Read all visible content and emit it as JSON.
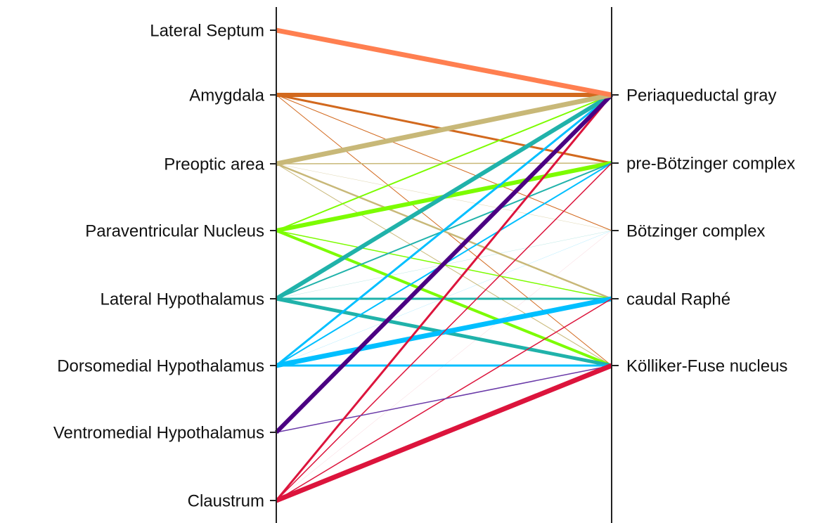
{
  "left_nodes": [
    "Lateral Septum",
    "Amygdala",
    "Preoptic area",
    "Paraventricular Nucleus",
    "Lateral Hypothalamus",
    "Dorsomedial Hypothalamus",
    "Ventromedial Hypothalamus",
    "Claustrum"
  ],
  "right_nodes": [
    "Periaqueductal gray",
    "pre-Bötzinger complex",
    "Bötzinger complex",
    "caudal Raphé",
    "Kölliker-Fuse nucleus"
  ]
}
